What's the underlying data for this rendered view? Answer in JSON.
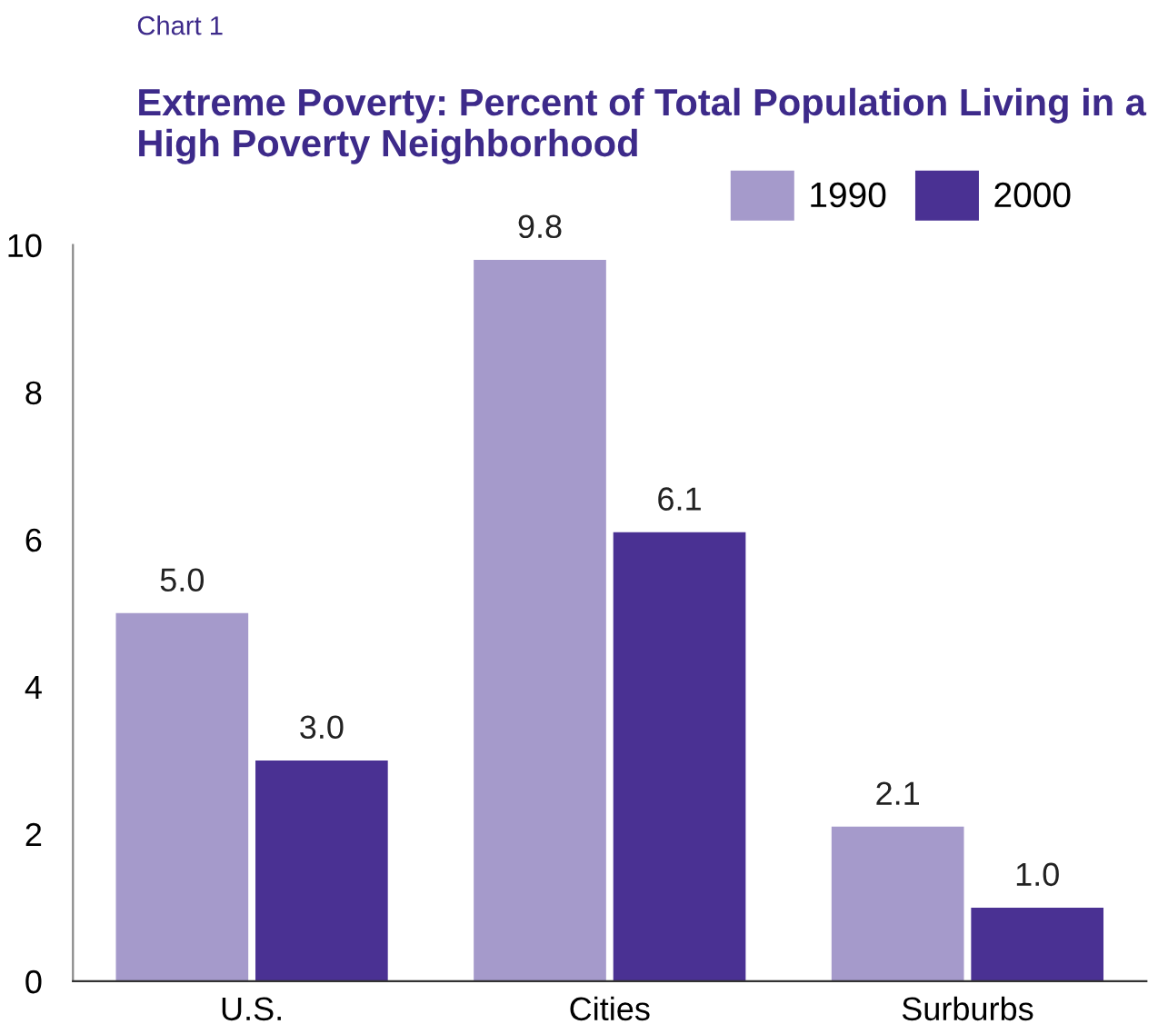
{
  "chart_data": {
    "type": "bar",
    "title": "Extreme Poverty: Percent of Total Population Living in a High Poverty Neighborhood",
    "annotations": [
      "Chart 1"
    ],
    "categories": [
      "U.S.",
      "Cities",
      "Surburbs"
    ],
    "series": [
      {
        "name": "1990",
        "color": "#a59acb",
        "values": [
          5.0,
          9.8,
          2.1
        ],
        "value_labels": [
          "5.0",
          "9.8",
          "2.1"
        ]
      },
      {
        "name": "2000",
        "color": "#4a3193",
        "values": [
          3.0,
          6.1,
          1.0
        ],
        "value_labels": [
          "3.0",
          "6.1",
          "1.0"
        ]
      }
    ],
    "ylim": [
      0,
      10
    ],
    "yticks": [
      0,
      2,
      4,
      6,
      8,
      10
    ],
    "grid": false,
    "legend": "top right"
  }
}
